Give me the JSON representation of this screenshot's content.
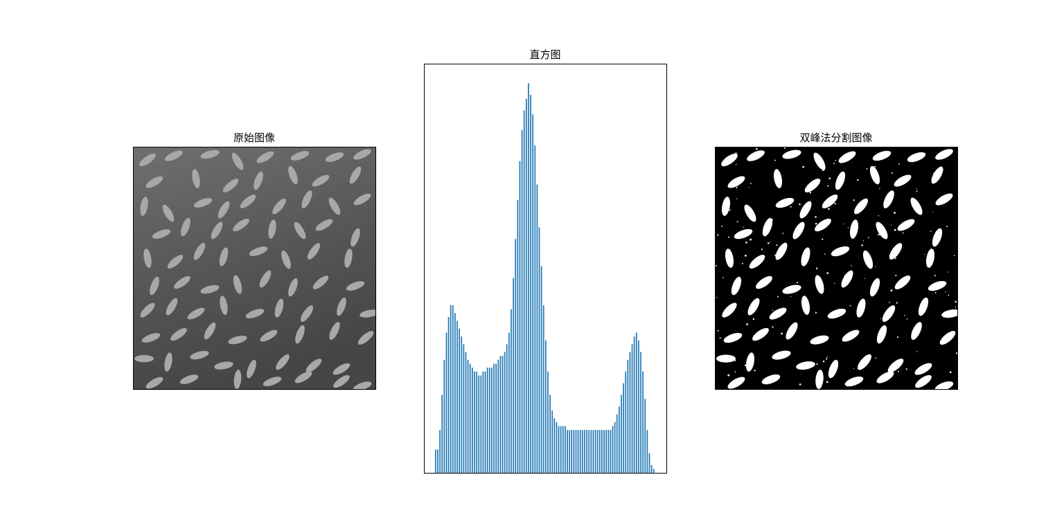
{
  "panels": {
    "original": {
      "title": "原始图像"
    },
    "histogram": {
      "title": "直方图"
    },
    "segmented": {
      "title": "双峰法分割图像"
    }
  },
  "colors": {
    "bar": "#1f77b4",
    "axes_frame": "#000000",
    "image_background": "#3c3c3c",
    "grain_gray": "#a8a8a8",
    "segmented_background": "#000000",
    "segmented_foreground": "#ffffff"
  },
  "chart_data": [
    {
      "type": "image",
      "title": "原始图像",
      "content": "grayscale photo of rice grains on dark background",
      "axes_visible": false
    },
    {
      "type": "bar",
      "title": "直方图",
      "axes_visible": false,
      "ylim": [
        0,
        1.05
      ],
      "values": [
        0.06,
        0.06,
        0.11,
        0.2,
        0.29,
        0.36,
        0.4,
        0.43,
        0.43,
        0.41,
        0.39,
        0.37,
        0.35,
        0.33,
        0.31,
        0.29,
        0.28,
        0.27,
        0.26,
        0.26,
        0.25,
        0.25,
        0.26,
        0.26,
        0.27,
        0.27,
        0.27,
        0.28,
        0.28,
        0.29,
        0.3,
        0.3,
        0.31,
        0.33,
        0.36,
        0.42,
        0.5,
        0.6,
        0.7,
        0.8,
        0.88,
        0.93,
        0.96,
        1.0,
        0.97,
        0.92,
        0.84,
        0.74,
        0.63,
        0.53,
        0.43,
        0.34,
        0.26,
        0.2,
        0.16,
        0.14,
        0.13,
        0.12,
        0.12,
        0.12,
        0.12,
        0.11,
        0.11,
        0.11,
        0.11,
        0.11,
        0.11,
        0.11,
        0.11,
        0.11,
        0.11,
        0.11,
        0.11,
        0.11,
        0.11,
        0.11,
        0.11,
        0.11,
        0.11,
        0.11,
        0.11,
        0.11,
        0.12,
        0.13,
        0.15,
        0.17,
        0.2,
        0.23,
        0.26,
        0.29,
        0.31,
        0.33,
        0.35,
        0.36,
        0.34,
        0.31,
        0.26,
        0.19,
        0.11,
        0.05,
        0.02,
        0.01
      ]
    },
    {
      "type": "image",
      "title": "双峰法分割图像",
      "content": "binary thresholded image: white rice grains on black background",
      "axes_visible": false
    }
  ]
}
